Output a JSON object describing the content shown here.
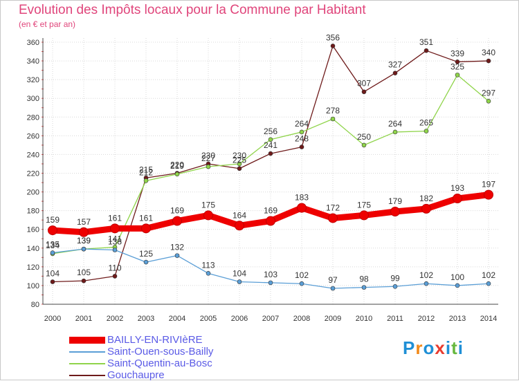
{
  "header": {
    "title": "Evolution des Impôts locaux pour la Commune par Habitant",
    "subtitle": "(en € et par an)"
  },
  "logo": {
    "text": "Proxiti",
    "colors": [
      "#1f8fd6",
      "#f28a1a",
      "#1f8fd6",
      "#e83c2f",
      "#1f8fd6",
      "#67b83f",
      "#1f8fd6"
    ]
  },
  "chart_data": {
    "type": "line",
    "title": "Evolution des Impôts locaux pour la Commune par Habitant",
    "subtitle": "(en € et par an)",
    "xlabel": "",
    "ylabel": "",
    "x": [
      2000,
      2001,
      2002,
      2003,
      2004,
      2005,
      2006,
      2007,
      2008,
      2009,
      2010,
      2011,
      2012,
      2013,
      2014
    ],
    "ylim": [
      80,
      360
    ],
    "yticks": [
      80,
      100,
      120,
      140,
      160,
      180,
      200,
      220,
      240,
      260,
      280,
      300,
      320,
      340,
      360
    ],
    "grid": true,
    "legend_position": "bottom-left",
    "series": [
      {
        "name": "Gouchaupre",
        "color": "#6e1a1a",
        "values": [
          104,
          105,
          110,
          215,
          220,
          230,
          225,
          241,
          248,
          356,
          307,
          327,
          351,
          339,
          340
        ]
      },
      {
        "name": "Saint-Quentin-au-Bosc",
        "color": "#8fd44a",
        "values": [
          134,
          139,
          141,
          212,
          219,
          227,
          230,
          256,
          264,
          278,
          250,
          264,
          265,
          325,
          297
        ]
      },
      {
        "name": "Saint-Ouen-sous-Bailly",
        "color": "#5a9ed6",
        "values": [
          135,
          139,
          138,
          125,
          132,
          113,
          104,
          103,
          102,
          97,
          98,
          99,
          102,
          100,
          102
        ]
      },
      {
        "name": "BAILLY-EN-RIVIèRE",
        "color": "#ee0000",
        "values": [
          159,
          157,
          161,
          161,
          169,
          175,
          164,
          169,
          183,
          172,
          175,
          179,
          182,
          193,
          197
        ]
      }
    ],
    "labels": {
      "Gouchaupre": [
        "104",
        "105",
        "110",
        "215",
        "220",
        "230",
        "225",
        "241",
        "248",
        "356",
        "307",
        "327",
        "351",
        "339",
        "340"
      ],
      "Saint-Quentin-au-Bosc": [
        "134",
        "139",
        "141",
        "212",
        "219",
        "227",
        "230",
        "256",
        "264",
        "278",
        "250",
        "264",
        "265",
        "325",
        "297"
      ],
      "Saint-Ouen-sous-Bailly": [
        "135",
        "139",
        "138",
        "125",
        "132",
        "113",
        "104",
        "103",
        "102",
        "97",
        "98",
        "99",
        "102",
        "100",
        "102"
      ],
      "BAILLY-EN-RIVIèRE": [
        "159",
        "157",
        "161",
        "161",
        "169",
        "175",
        "164",
        "169",
        "183",
        "172",
        "175",
        "179",
        "182",
        "193",
        "197"
      ]
    }
  },
  "legend": {
    "items": [
      {
        "label": "BAILLY-EN-RIVIèRE",
        "color": "#ee0000"
      },
      {
        "label": "Saint-Ouen-sous-Bailly",
        "color": "#5a9ed6"
      },
      {
        "label": "Saint-Quentin-au-Bosc",
        "color": "#8fd44a"
      },
      {
        "label": "Gouchaupre",
        "color": "#6e1a1a"
      }
    ]
  }
}
